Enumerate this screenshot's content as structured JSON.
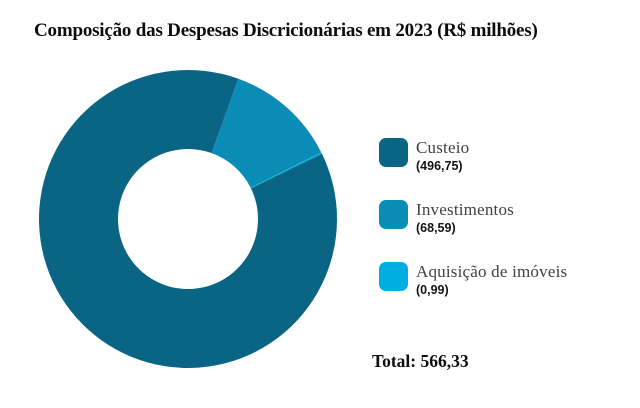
{
  "title": "Composição das Despesas Discricionárias em 2023 (R$ milhões)",
  "chart_data": {
    "type": "pie",
    "subtype": "donut",
    "title": "Composição das Despesas Discricionárias em 2023 (R$ milhões)",
    "categories": [
      "Custeio",
      "Investimentos",
      "Aquisição de imóveis"
    ],
    "values": [
      496.75,
      68.59,
      0.99
    ],
    "value_labels": [
      "(496,75)",
      "(68,59)",
      "(0,99)"
    ],
    "colors": [
      "#0a6585",
      "#098cb5",
      "#00aee2"
    ],
    "total": 566.33,
    "total_text": "Total: 566,33",
    "unit": "R$ milhões",
    "legend_position": "right",
    "start_angle_deg": 64,
    "direction": "clockwise",
    "inner_radius_ratio": 0.47
  },
  "legend": {
    "items": [
      {
        "label": "Custeio",
        "value": "(496,75)",
        "color": "#0a6585"
      },
      {
        "label": "Investimentos",
        "value": "(68,59)",
        "color": "#098cb5"
      },
      {
        "label": "Aquisição de imóveis",
        "value": "(0,99)",
        "color": "#00aee2"
      }
    ]
  }
}
